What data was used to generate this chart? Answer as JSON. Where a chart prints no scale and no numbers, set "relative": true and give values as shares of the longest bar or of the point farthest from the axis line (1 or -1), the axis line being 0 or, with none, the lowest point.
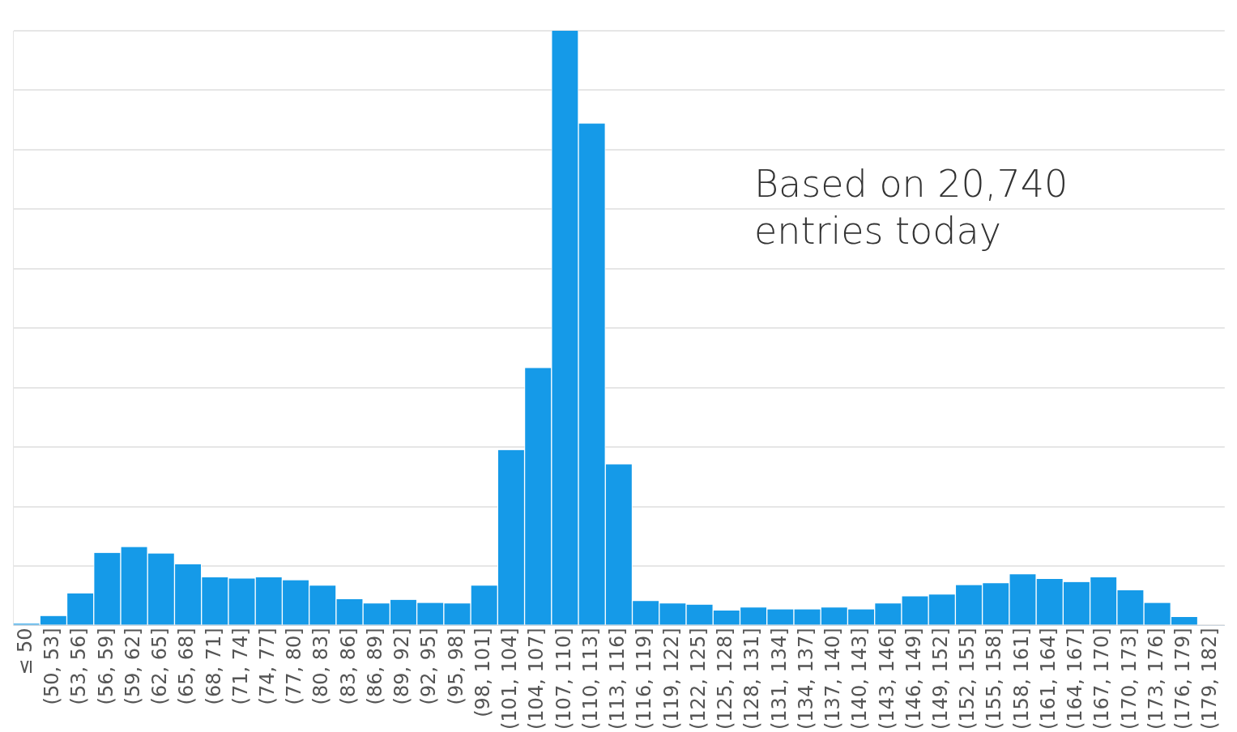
{
  "chart_data": {
    "type": "bar",
    "relative": true,
    "grid": "y",
    "color": "#159ae8",
    "categories": [
      "≤ 50",
      "(50, 53]",
      "(53, 56]",
      "(56, 59]",
      "(59, 62]",
      "(62, 65]",
      "(65, 68]",
      "(68, 71]",
      "(71, 74]",
      "(74, 77]",
      "(77, 80]",
      "(80, 83]",
      "(83, 86]",
      "(86, 89]",
      "(89, 92]",
      "(92, 95]",
      "(95, 98]",
      "(98, 101]",
      "(101, 104]",
      "(104, 107]",
      "(107, 110]",
      "(110, 113]",
      "(113, 116]",
      "(116, 119]",
      "(119, 122]",
      "(122, 125]",
      "(125, 128]",
      "(128, 131]",
      "(131, 134]",
      "(134, 137]",
      "(137, 140]",
      "(140, 143]",
      "(143, 146]",
      "(146, 149]",
      "(149, 152]",
      "(152, 155]",
      "(155, 158]",
      "(158, 161]",
      "(161, 164]",
      "(164, 167]",
      "(167, 170]",
      "(170, 173]",
      "(173, 176]",
      "(176, 179]",
      "(179, 182]"
    ],
    "values": [
      0.003,
      0.016,
      0.054,
      0.122,
      0.132,
      0.121,
      0.103,
      0.081,
      0.079,
      0.081,
      0.076,
      0.067,
      0.044,
      0.037,
      0.043,
      0.038,
      0.037,
      0.067,
      0.295,
      0.433,
      1,
      0.844,
      0.271,
      0.041,
      0.037,
      0.035,
      0.025,
      0.03,
      0.027,
      0.027,
      0.03,
      0.027,
      0.037,
      0.049,
      0.052,
      0.068,
      0.071,
      0.086,
      0.078,
      0.073,
      0.081,
      0.059,
      0.038,
      0.014,
      0
    ],
    "annotations": [
      "Based on 20,740\nentries today"
    ]
  }
}
